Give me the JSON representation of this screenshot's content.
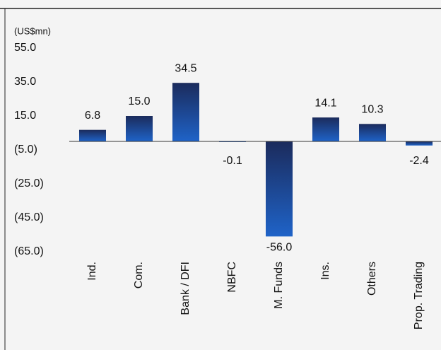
{
  "chart_data": {
    "type": "bar",
    "y_axis_label": "(US$mn)",
    "categories": [
      "Ind.",
      "Com.",
      "Bank / DFI",
      "NBFC",
      "M. Funds",
      "Ins.",
      "Others",
      "Prop. Trading"
    ],
    "values": [
      6.8,
      15.0,
      34.5,
      -0.1,
      -56.0,
      14.1,
      10.3,
      -2.4
    ],
    "value_labels": [
      "6.8",
      "15.0",
      "34.5",
      "-0.1",
      "-56.0",
      "14.1",
      "10.3",
      "-2.4"
    ],
    "color": "#1f5fc0",
    "ylim": [
      -65,
      55
    ],
    "yticks": [
      {
        "value": 55,
        "label": "55.0"
      },
      {
        "value": 35,
        "label": "35.0"
      },
      {
        "value": 15,
        "label": "15.0"
      },
      {
        "value": -5,
        "label": "(5.0)"
      },
      {
        "value": -25,
        "label": "(25.0)"
      },
      {
        "value": -45,
        "label": "(45.0)"
      },
      {
        "value": -65,
        "label": "(65.0)"
      }
    ],
    "grid": false
  }
}
